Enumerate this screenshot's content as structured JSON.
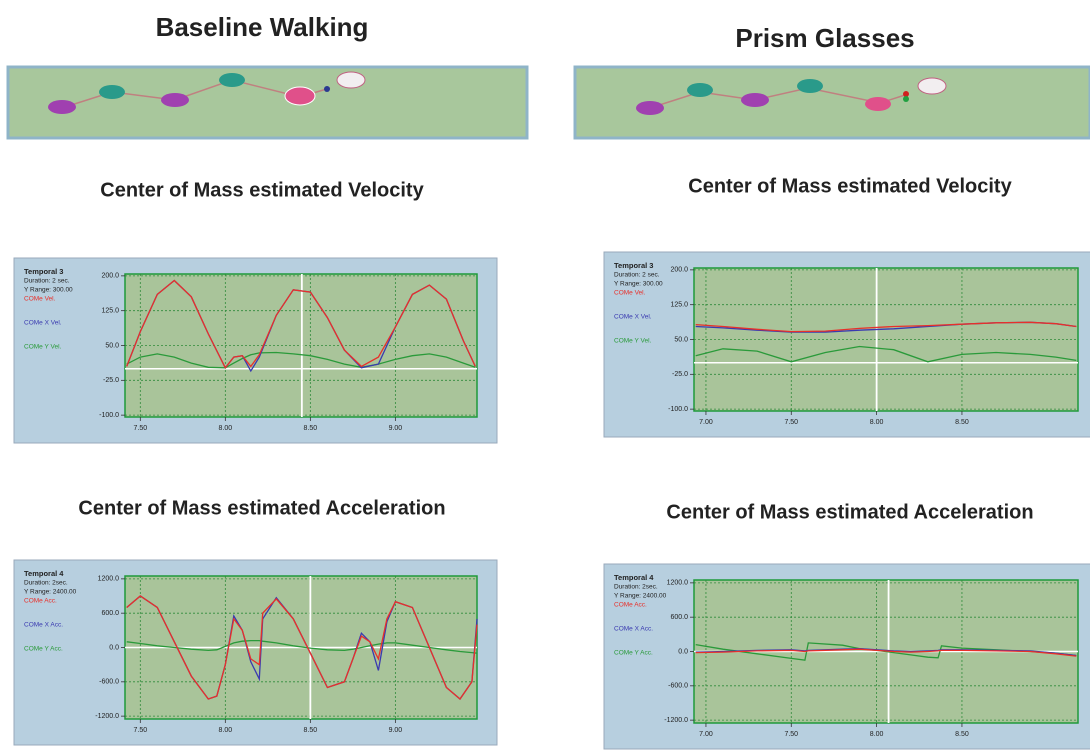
{
  "headings": [
    "Baseline Walking",
    "Prism Glasses"
  ],
  "chart_data": [
    {
      "type": "line",
      "title": "Center of Mass estimated Velocity",
      "info": [
        "Temporal 3",
        "Duration: 2 sec.",
        "Y Range: 300.00"
      ],
      "xlim": [
        7.41,
        9.48
      ],
      "ylim": [
        -104,
        204
      ],
      "cursor": 8.45,
      "xticks": [
        {
          "value": 7.5,
          "label": "7.50"
        },
        {
          "value": 8,
          "label": "8.00"
        },
        {
          "value": 8.5,
          "label": "8.50"
        },
        {
          "value": 9,
          "label": "9.00"
        }
      ],
      "yticks": [
        {
          "value": 200,
          "label": "200.0"
        },
        {
          "value": 125,
          "label": "125.0"
        },
        {
          "value": 50,
          "label": "50.0"
        },
        {
          "value": -25,
          "label": "-25.0"
        },
        {
          "value": -100,
          "label": "-100.0"
        }
      ],
      "x": [
        7.42,
        7.5,
        7.6,
        7.7,
        7.8,
        7.9,
        8.0,
        8.05,
        8.1,
        8.15,
        8.2,
        8.3,
        8.4,
        8.5,
        8.6,
        8.7,
        8.8,
        8.9,
        9.0,
        9.1,
        9.2,
        9.3,
        9.4,
        9.47
      ],
      "series": [
        {
          "name": "COMe Vel.",
          "color": "#e8302a",
          "values": [
            5,
            80,
            160,
            190,
            155,
            75,
            2,
            25,
            28,
            5,
            30,
            115,
            170,
            165,
            110,
            40,
            5,
            25,
            90,
            160,
            180,
            150,
            60,
            5
          ]
        },
        {
          "name": "COMe X Vel.",
          "color": "#3a3ab0",
          "values": [
            5,
            80,
            160,
            190,
            155,
            75,
            2,
            25,
            28,
            -5,
            25,
            115,
            170,
            165,
            110,
            40,
            2,
            10,
            90,
            160,
            180,
            150,
            60,
            5
          ]
        },
        {
          "name": "COMe Y Vel.",
          "color": "#2a9a3a",
          "values": [
            10,
            25,
            32,
            25,
            12,
            3,
            2,
            12,
            22,
            30,
            34,
            35,
            32,
            28,
            20,
            10,
            3,
            10,
            20,
            28,
            32,
            25,
            12,
            3
          ]
        }
      ]
    },
    {
      "type": "line",
      "title": "Center of Mass estimated Velocity",
      "info": [
        "Temporal 3",
        "Duration: 2 sec.",
        "Y Range: 300.00"
      ],
      "xlim": [
        6.93,
        9.18
      ],
      "ylim": [
        -104,
        204
      ],
      "cursor": 8.0,
      "xticks": [
        {
          "value": 7,
          "label": "7.00"
        },
        {
          "value": 7.5,
          "label": "7.50"
        },
        {
          "value": 8,
          "label": "8.00"
        },
        {
          "value": 8.5,
          "label": "8.50"
        }
      ],
      "yticks": [
        {
          "value": 200,
          "label": "200.0"
        },
        {
          "value": 125,
          "label": "125.0"
        },
        {
          "value": 50,
          "label": "50.0"
        },
        {
          "value": -25,
          "label": "-25.0"
        },
        {
          "value": -100,
          "label": "-100.0"
        }
      ],
      "x": [
        6.94,
        7.1,
        7.3,
        7.5,
        7.7,
        7.9,
        8.1,
        8.3,
        8.5,
        8.7,
        8.9,
        9.05,
        9.17
      ],
      "series": [
        {
          "name": "COMe Vel.",
          "color": "#e8302a",
          "values": [
            82,
            78,
            72,
            67,
            68,
            74,
            78,
            80,
            83,
            86,
            87,
            84,
            78
          ]
        },
        {
          "name": "COMe X Vel.",
          "color": "#3a3ab0",
          "values": [
            78,
            75,
            70,
            66,
            66,
            70,
            73,
            78,
            83,
            86,
            87,
            84,
            78
          ]
        },
        {
          "name": "COMe Y Vel.",
          "color": "#2a9a3a",
          "values": [
            15,
            30,
            25,
            2,
            22,
            35,
            28,
            2,
            18,
            22,
            18,
            12,
            5
          ]
        }
      ]
    },
    {
      "type": "line",
      "title": "Center of Mass estimated Acceleration",
      "info": [
        "Temporal 4",
        "Duration: 2sec.",
        "Y Range: 2400.00"
      ],
      "xlim": [
        7.41,
        9.48
      ],
      "ylim": [
        -1250,
        1250
      ],
      "cursor": 8.5,
      "xticks": [
        {
          "value": 7.5,
          "label": "7.50"
        },
        {
          "value": 8,
          "label": "8.00"
        },
        {
          "value": 8.5,
          "label": "8.50"
        },
        {
          "value": 9,
          "label": "9.00"
        }
      ],
      "yticks": [
        {
          "value": 1200,
          "label": "1200.0"
        },
        {
          "value": 600,
          "label": "600.0"
        },
        {
          "value": 0,
          "label": "0.0"
        },
        {
          "value": -600,
          "label": "-600.0"
        },
        {
          "value": -1200,
          "label": "-1200.0"
        }
      ],
      "x": [
        7.42,
        7.5,
        7.6,
        7.7,
        7.8,
        7.9,
        7.95,
        8.0,
        8.05,
        8.1,
        8.15,
        8.2,
        8.22,
        8.3,
        8.4,
        8.5,
        8.6,
        8.7,
        8.75,
        8.8,
        8.85,
        8.9,
        8.95,
        9.0,
        9.1,
        9.2,
        9.3,
        9.38,
        9.45,
        9.48
      ],
      "series": [
        {
          "name": "COMe Acc.",
          "color": "#e8302a",
          "values": [
            700,
            900,
            700,
            100,
            -500,
            -900,
            -850,
            -300,
            500,
            300,
            -200,
            -300,
            600,
            850,
            500,
            -100,
            -700,
            -600,
            -200,
            200,
            100,
            -200,
            500,
            800,
            700,
            0,
            -700,
            -900,
            -600,
            400
          ]
        },
        {
          "name": "COMe X Acc.",
          "color": "#3a3ab0",
          "values": [
            700,
            900,
            700,
            100,
            -500,
            -900,
            -850,
            -300,
            550,
            300,
            -250,
            -550,
            500,
            870,
            500,
            -100,
            -700,
            -600,
            -200,
            250,
            100,
            -400,
            450,
            800,
            700,
            0,
            -700,
            -900,
            -600,
            500
          ]
        },
        {
          "name": "COMe Y Acc.",
          "color": "#2a9a3a",
          "values": [
            100,
            70,
            30,
            0,
            -30,
            -50,
            -40,
            20,
            80,
            110,
            120,
            120,
            110,
            80,
            30,
            -10,
            -40,
            -50,
            -30,
            0,
            30,
            60,
            80,
            80,
            40,
            0,
            -40,
            -70,
            -90,
            -100
          ]
        }
      ]
    },
    {
      "type": "line",
      "title": "Center of Mass estimated Acceleration",
      "info": [
        "Temporal 4",
        "Duration: 2sec.",
        "Y Range: 2400.00"
      ],
      "xlim": [
        6.93,
        9.18
      ],
      "ylim": [
        -1250,
        1250
      ],
      "cursor": 8.07,
      "xticks": [
        {
          "value": 7,
          "label": "7.00"
        },
        {
          "value": 7.5,
          "label": "7.50"
        },
        {
          "value": 8,
          "label": "8.00"
        },
        {
          "value": 8.5,
          "label": "8.50"
        }
      ],
      "yticks": [
        {
          "value": 1200,
          "label": "1200.0"
        },
        {
          "value": 600,
          "label": "600.0"
        },
        {
          "value": 0,
          "label": "0.0"
        },
        {
          "value": -600,
          "label": "-600.0"
        },
        {
          "value": -1200,
          "label": "-1200.0"
        }
      ],
      "x": [
        6.94,
        7.1,
        7.3,
        7.5,
        7.58,
        7.6,
        7.8,
        7.9,
        8.0,
        8.1,
        8.2,
        8.3,
        8.36,
        8.38,
        8.5,
        8.7,
        8.9,
        9.05,
        9.17
      ],
      "series": [
        {
          "name": "COMe Acc.",
          "color": "#e8302a",
          "values": [
            -20,
            -10,
            10,
            20,
            0,
            10,
            30,
            40,
            20,
            0,
            -10,
            0,
            10,
            20,
            20,
            10,
            0,
            -40,
            -80
          ]
        },
        {
          "name": "COMe X Acc.",
          "color": "#3a3ab0",
          "values": [
            -10,
            0,
            20,
            30,
            10,
            20,
            40,
            50,
            30,
            10,
            0,
            10,
            20,
            30,
            30,
            20,
            10,
            -30,
            -70
          ]
        },
        {
          "name": "COMe Y Acc.",
          "color": "#2a9a3a",
          "values": [
            120,
            40,
            -40,
            -120,
            -150,
            150,
            110,
            50,
            20,
            -20,
            -60,
            -100,
            -110,
            100,
            60,
            30,
            0,
            -30,
            -70
          ]
        }
      ]
    }
  ]
}
